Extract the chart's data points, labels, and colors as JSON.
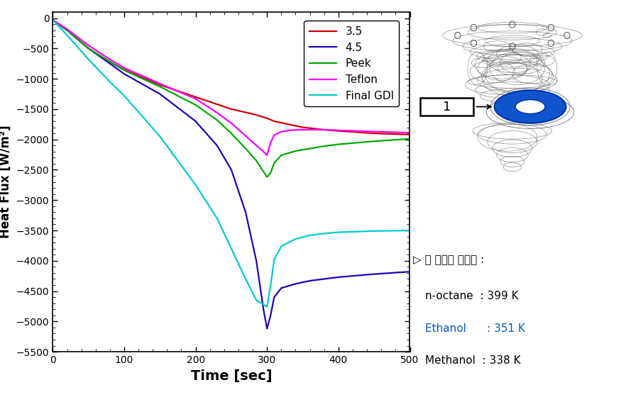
{
  "xlabel": "Time [sec]",
  "ylabel": "Heat Flux [W/m²]",
  "xlim": [
    0,
    500
  ],
  "ylim": [
    -5500,
    100
  ],
  "yticks": [
    0,
    -500,
    -1000,
    -1500,
    -2000,
    -2500,
    -3000,
    -3500,
    -4000,
    -4500,
    -5000,
    -5500
  ],
  "xticks": [
    0,
    100,
    200,
    300,
    400,
    500
  ],
  "series": {
    "3.5": {
      "color": "#cc0000",
      "linewidth": 1.6,
      "points": [
        [
          0,
          -30
        ],
        [
          20,
          -200
        ],
        [
          50,
          -500
        ],
        [
          80,
          -720
        ],
        [
          100,
          -850
        ],
        [
          150,
          -1100
        ],
        [
          200,
          -1300
        ],
        [
          250,
          -1500
        ],
        [
          280,
          -1580
        ],
        [
          300,
          -1650
        ],
        [
          310,
          -1700
        ],
        [
          330,
          -1750
        ],
        [
          350,
          -1800
        ],
        [
          380,
          -1840
        ],
        [
          400,
          -1860
        ],
        [
          450,
          -1900
        ],
        [
          500,
          -1920
        ]
      ]
    },
    "4.5": {
      "color": "#2200bb",
      "linewidth": 1.6,
      "points": [
        [
          0,
          -30
        ],
        [
          20,
          -200
        ],
        [
          50,
          -500
        ],
        [
          80,
          -750
        ],
        [
          100,
          -920
        ],
        [
          150,
          -1250
        ],
        [
          200,
          -1700
        ],
        [
          230,
          -2100
        ],
        [
          250,
          -2500
        ],
        [
          270,
          -3200
        ],
        [
          285,
          -4000
        ],
        [
          295,
          -4800
        ],
        [
          300,
          -5120
        ],
        [
          305,
          -4900
        ],
        [
          310,
          -4600
        ],
        [
          320,
          -4450
        ],
        [
          340,
          -4380
        ],
        [
          360,
          -4330
        ],
        [
          380,
          -4300
        ],
        [
          400,
          -4270
        ],
        [
          450,
          -4220
        ],
        [
          500,
          -4180
        ]
      ]
    },
    "Peek": {
      "color": "#00aa00",
      "linewidth": 1.6,
      "points": [
        [
          0,
          -30
        ],
        [
          20,
          -200
        ],
        [
          50,
          -500
        ],
        [
          80,
          -720
        ],
        [
          100,
          -860
        ],
        [
          150,
          -1130
        ],
        [
          200,
          -1430
        ],
        [
          230,
          -1680
        ],
        [
          250,
          -1900
        ],
        [
          270,
          -2150
        ],
        [
          285,
          -2350
        ],
        [
          295,
          -2530
        ],
        [
          300,
          -2620
        ],
        [
          305,
          -2550
        ],
        [
          310,
          -2390
        ],
        [
          320,
          -2260
        ],
        [
          340,
          -2190
        ],
        [
          360,
          -2150
        ],
        [
          380,
          -2110
        ],
        [
          400,
          -2080
        ],
        [
          450,
          -2030
        ],
        [
          500,
          -1990
        ]
      ]
    },
    "Teflon": {
      "color": "#ff00ff",
      "linewidth": 1.6,
      "points": [
        [
          0,
          -30
        ],
        [
          20,
          -180
        ],
        [
          50,
          -450
        ],
        [
          80,
          -680
        ],
        [
          100,
          -820
        ],
        [
          150,
          -1080
        ],
        [
          200,
          -1330
        ],
        [
          230,
          -1560
        ],
        [
          250,
          -1730
        ],
        [
          270,
          -1940
        ],
        [
          285,
          -2100
        ],
        [
          295,
          -2200
        ],
        [
          300,
          -2260
        ],
        [
          305,
          -2050
        ],
        [
          310,
          -1930
        ],
        [
          320,
          -1870
        ],
        [
          340,
          -1840
        ],
        [
          360,
          -1840
        ],
        [
          380,
          -1840
        ],
        [
          400,
          -1850
        ],
        [
          450,
          -1870
        ],
        [
          500,
          -1890
        ]
      ]
    },
    "Final GDI": {
      "color": "#00cccc",
      "linewidth": 1.6,
      "points": [
        [
          0,
          -30
        ],
        [
          20,
          -280
        ],
        [
          50,
          -680
        ],
        [
          80,
          -1050
        ],
        [
          100,
          -1280
        ],
        [
          150,
          -1950
        ],
        [
          200,
          -2750
        ],
        [
          230,
          -3300
        ],
        [
          250,
          -3800
        ],
        [
          270,
          -4300
        ],
        [
          285,
          -4650
        ],
        [
          295,
          -4720
        ],
        [
          300,
          -4760
        ],
        [
          305,
          -4400
        ],
        [
          310,
          -3980
        ],
        [
          320,
          -3760
        ],
        [
          340,
          -3640
        ],
        [
          360,
          -3580
        ],
        [
          380,
          -3550
        ],
        [
          400,
          -3530
        ],
        [
          450,
          -3510
        ],
        [
          500,
          -3500
        ]
      ]
    }
  },
  "text_boiling": "▷ 각 연료의 끓는점 :",
  "text_noctane": "n-octane  : 399 K",
  "text_ethanol": "Ethanol      : 351 K",
  "text_methanol": "Methanol  : 338 K",
  "color_ethanol": "#0055cc",
  "background_color": "#ffffff"
}
